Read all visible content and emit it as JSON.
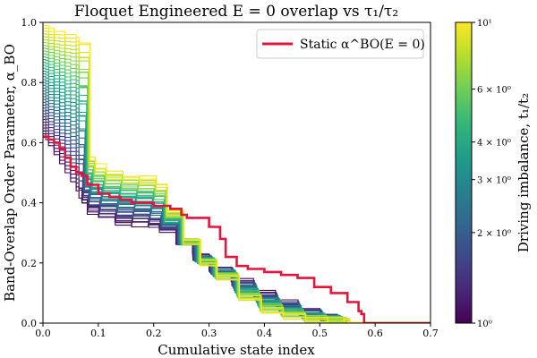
{
  "chart_data": {
    "type": "line",
    "title": "Floquet Engineered E = 0 overlap vs τ₁/τ₂",
    "xlabel": "Cumulative state index",
    "ylabel": "Band-Overlap Order Parameter, α_BO",
    "xlim": [
      0.0,
      0.7
    ],
    "ylim": [
      0.0,
      1.0
    ],
    "xticks": [
      "0.0",
      "0.1",
      "0.2",
      "0.3",
      "0.4",
      "0.5",
      "0.6",
      "0.7"
    ],
    "yticks": [
      "0.0",
      "0.2",
      "0.4",
      "0.6",
      "0.8",
      "1.0"
    ],
    "grid": false,
    "legend": {
      "position": "top-right",
      "entries": [
        "Static α^BO(E = 0)"
      ]
    },
    "static_series": {
      "name": "Static α^BO(E = 0)",
      "color": "#e4143c",
      "x": [
        0.0,
        0.01,
        0.02,
        0.03,
        0.04,
        0.05,
        0.06,
        0.07,
        0.08,
        0.1,
        0.12,
        0.14,
        0.16,
        0.18,
        0.2,
        0.21,
        0.23,
        0.25,
        0.26,
        0.28,
        0.3,
        0.32,
        0.33,
        0.35,
        0.37,
        0.4,
        0.43,
        0.46,
        0.49,
        0.52,
        0.55,
        0.57,
        0.575,
        0.58,
        0.6,
        0.7
      ],
      "y": [
        0.62,
        0.61,
        0.6,
        0.58,
        0.55,
        0.52,
        0.5,
        0.49,
        0.46,
        0.43,
        0.42,
        0.41,
        0.4,
        0.4,
        0.39,
        0.39,
        0.38,
        0.36,
        0.35,
        0.35,
        0.32,
        0.28,
        0.22,
        0.19,
        0.18,
        0.17,
        0.16,
        0.15,
        0.12,
        0.1,
        0.07,
        0.04,
        0.03,
        0.0,
        0.0,
        0.0
      ]
    },
    "colorbar": {
      "label": "Driving imbalance, t₁/t₂",
      "scale": "log",
      "range": [
        1,
        10
      ],
      "ticks": [
        {
          "value": 1,
          "label": "10⁰"
        },
        {
          "value": 2,
          "label": "2 × 10⁰"
        },
        {
          "value": 3,
          "label": "3 × 10⁰"
        },
        {
          "value": 4,
          "label": "4 × 10⁰"
        },
        {
          "value": 6,
          "label": "6 × 10⁰"
        },
        {
          "value": 10,
          "label": "10¹"
        }
      ],
      "colormap": [
        "#440154",
        "#482878",
        "#3e4989",
        "#31688e",
        "#26828e",
        "#1f9e89",
        "#35b779",
        "#6ece58",
        "#b5de2b",
        "#fde725"
      ]
    },
    "floquet_family": {
      "count": 40,
      "ratio_range": [
        1,
        10
      ],
      "note": "One curve per driving imbalance t1/t2 (log-spaced 1 to 10); x in cumulative state index, y in α_BO",
      "low_ratio_curve": {
        "x": [
          0.0,
          0.005,
          0.01,
          0.02,
          0.03,
          0.04,
          0.05,
          0.06,
          0.065,
          0.07,
          0.08,
          0.1,
          0.13,
          0.16,
          0.19,
          0.21,
          0.24,
          0.27,
          0.3,
          0.34,
          0.38,
          0.42,
          0.46,
          0.5,
          0.53,
          0.54,
          0.55,
          0.7
        ],
        "y": [
          0.62,
          0.61,
          0.59,
          0.56,
          0.53,
          0.5,
          0.47,
          0.44,
          0.42,
          0.4,
          0.37,
          0.35,
          0.33,
          0.33,
          0.32,
          0.31,
          0.27,
          0.22,
          0.18,
          0.14,
          0.1,
          0.07,
          0.04,
          0.02,
          0.01,
          0.008,
          0.003,
          0.0
        ]
      },
      "high_ratio_curve": {
        "x": [
          0.0,
          0.005,
          0.01,
          0.02,
          0.03,
          0.04,
          0.05,
          0.06,
          0.065,
          0.07,
          0.08,
          0.1,
          0.13,
          0.16,
          0.19,
          0.21,
          0.24,
          0.27,
          0.3,
          0.34,
          0.38,
          0.42,
          0.46,
          0.5,
          0.53,
          0.54,
          0.55,
          0.7
        ],
        "y": [
          0.99,
          0.99,
          0.98,
          0.97,
          0.97,
          0.96,
          0.96,
          0.95,
          0.93,
          0.55,
          0.52,
          0.5,
          0.49,
          0.48,
          0.46,
          0.37,
          0.27,
          0.2,
          0.15,
          0.08,
          0.04,
          0.02,
          0.01,
          0.01,
          0.005,
          0.004,
          0.002,
          0.0
        ]
      }
    }
  }
}
